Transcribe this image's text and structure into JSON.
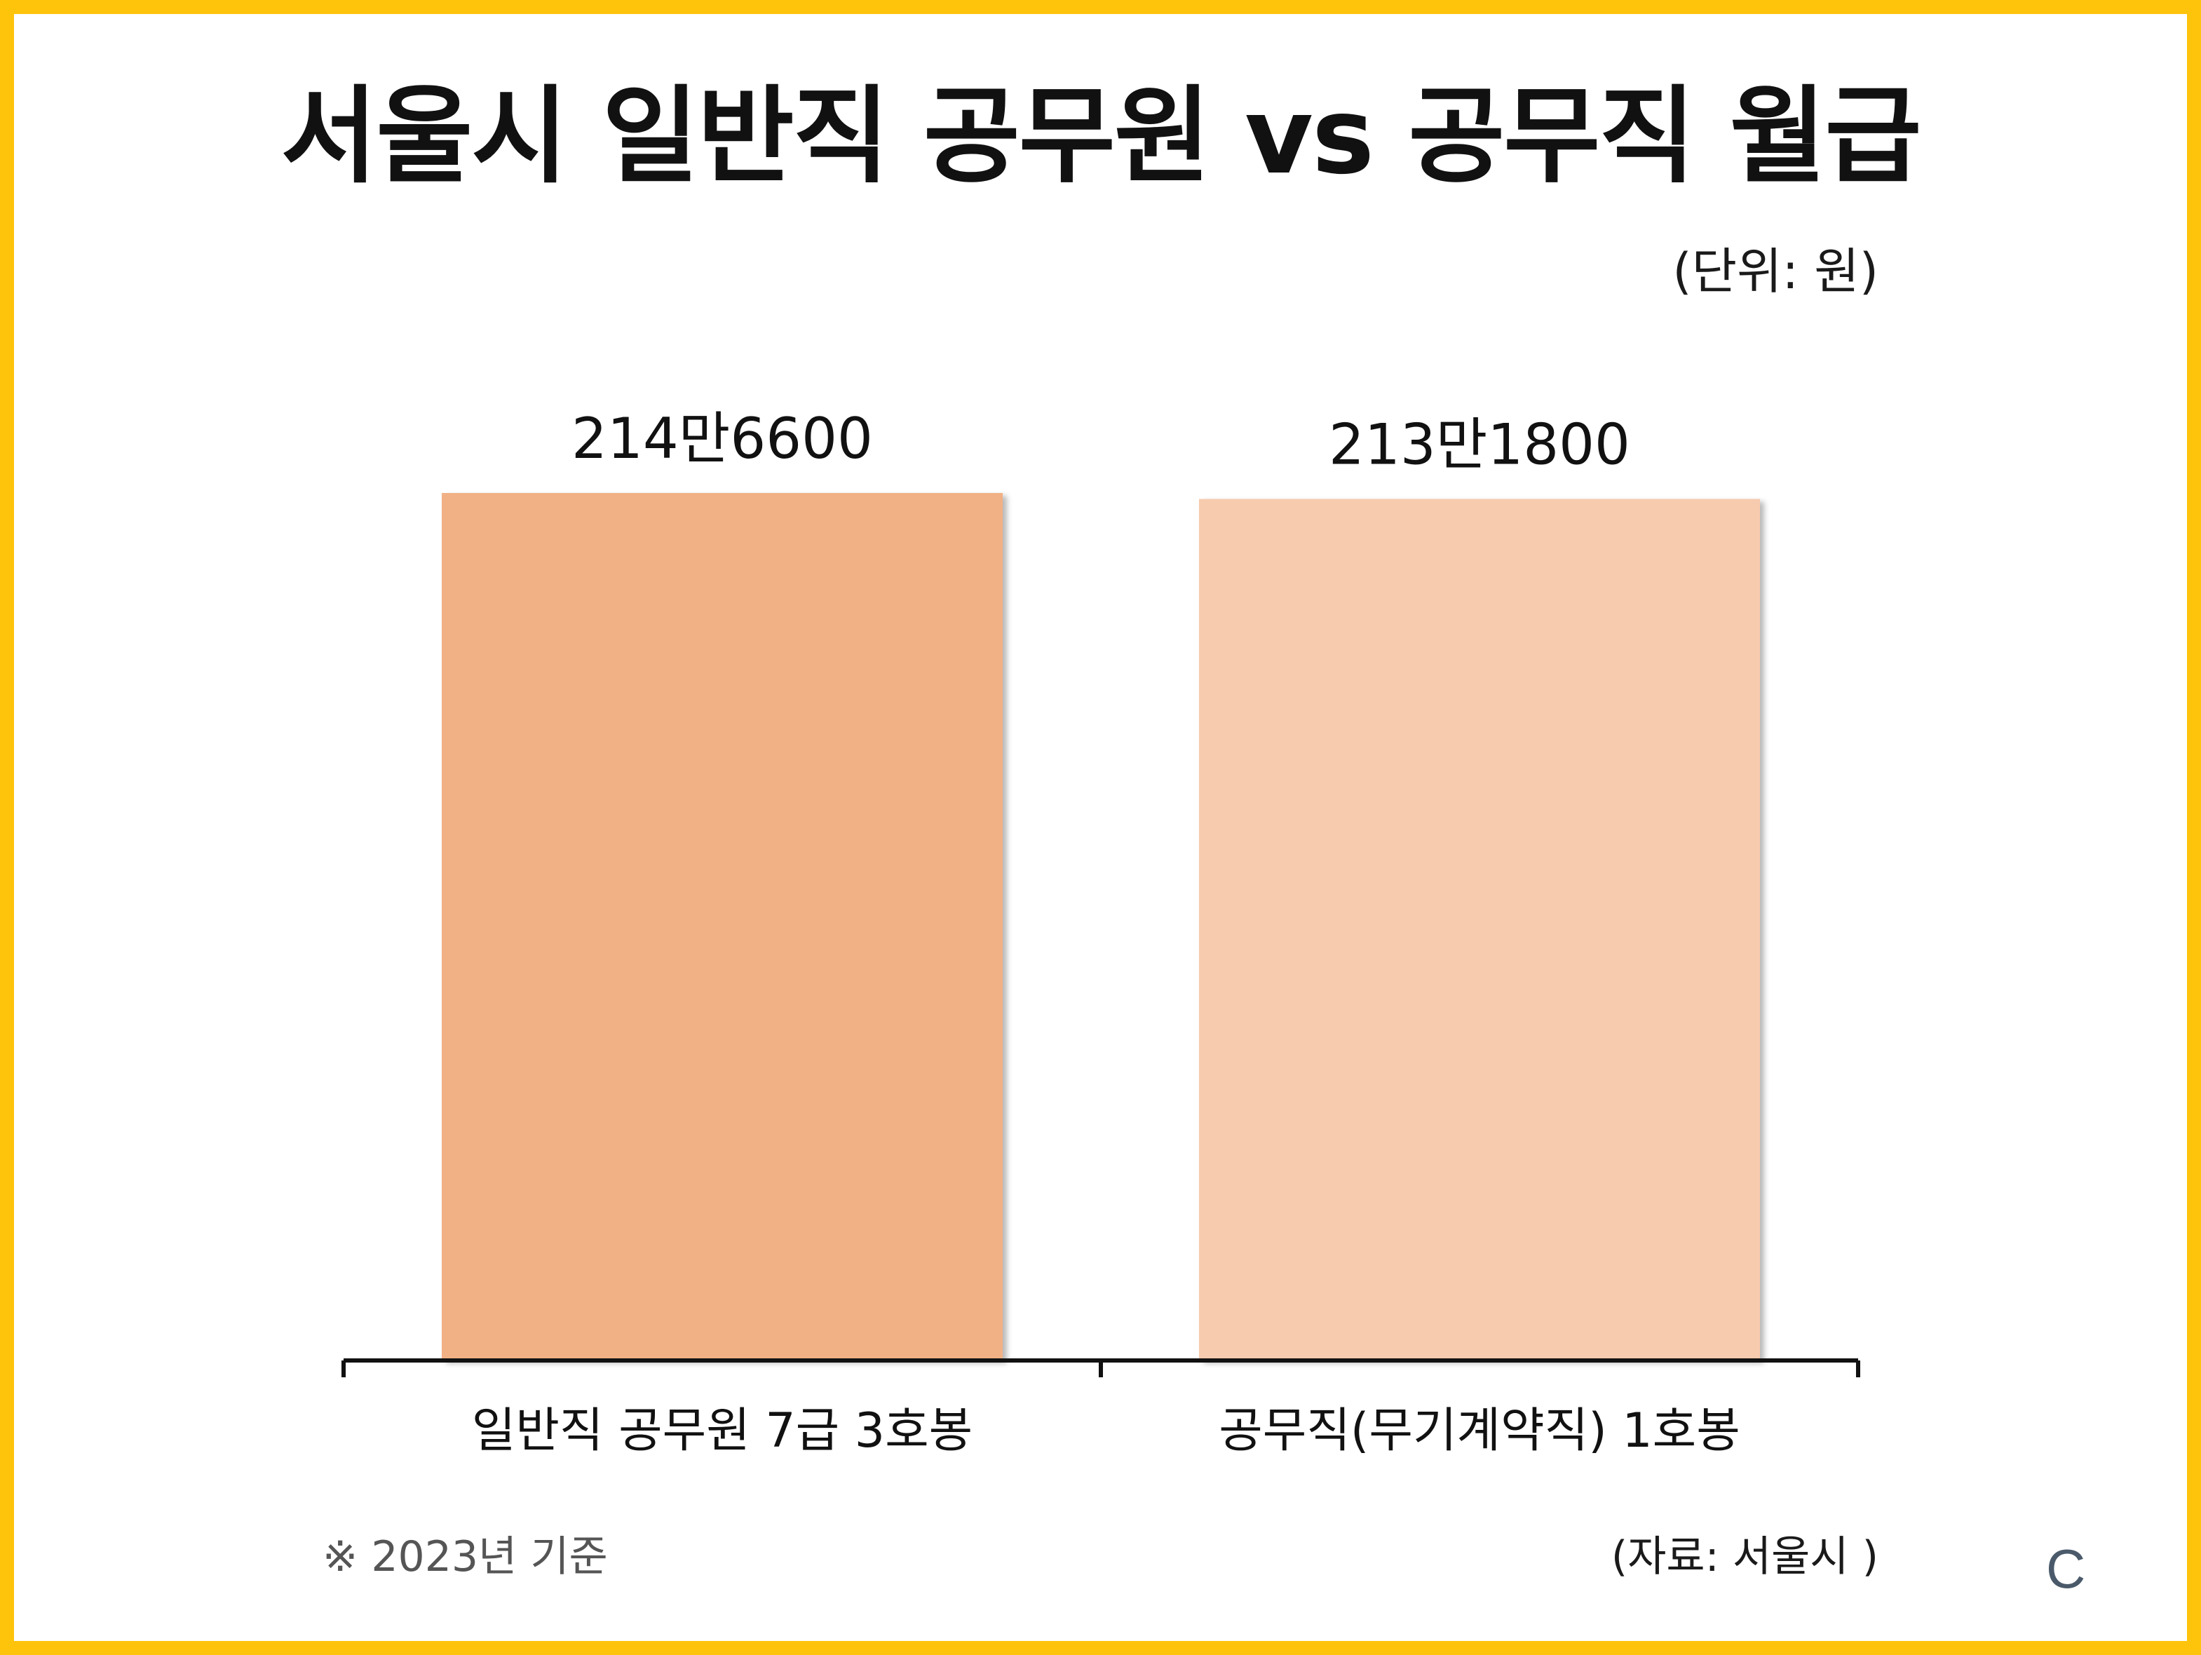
{
  "colors": {
    "frame": "#fec30b",
    "bar_1": "#f2b185",
    "bar_2": "#f7cbae",
    "axis": "#111111"
  },
  "chart_data": {
    "type": "bar",
    "title": "서울시 일반직 공무원 vs 공무직 월급",
    "unit_label": "(단위: 원)",
    "categories": [
      "일반직 공무원 7급 3호봉",
      "공무직(무기계약직) 1호봉"
    ],
    "values": [
      2146600,
      2131800
    ],
    "data_labels": [
      "214만6600",
      "213만1800"
    ],
    "ylim": [
      0,
      2146600
    ],
    "grid": false
  },
  "footer": {
    "note": "※ 2023년 기준",
    "source": "(자료: 서울시 )",
    "logo": "C"
  }
}
